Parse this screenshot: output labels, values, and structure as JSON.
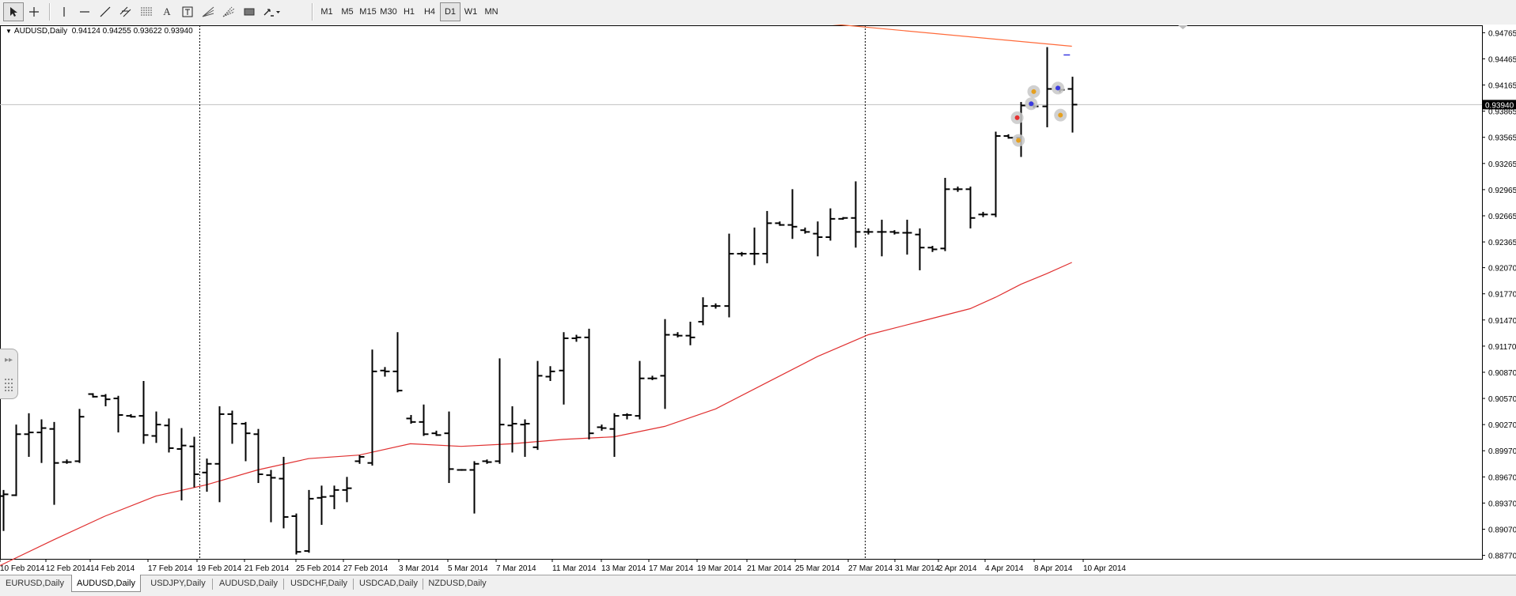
{
  "toolbar": {
    "timeframes": [
      {
        "label": "M1",
        "active": false
      },
      {
        "label": "M5",
        "active": false
      },
      {
        "label": "M15",
        "active": false
      },
      {
        "label": "M30",
        "active": false
      },
      {
        "label": "H1",
        "active": false
      },
      {
        "label": "H4",
        "active": false
      },
      {
        "label": "D1",
        "active": true
      },
      {
        "label": "W1",
        "active": false
      },
      {
        "label": "MN",
        "active": false
      }
    ],
    "tools": [
      "cursor-icon",
      "crosshair-icon",
      "vertical-line-icon",
      "horizontal-line-icon",
      "trendline-icon",
      "equidistant-channel-icon",
      "fibonacci-retracement-icon",
      "text-icon",
      "text-label-icon",
      "gann-fan-icon",
      "fibonacci-fan-icon",
      "rectangle-icon",
      "arrows-menu-icon"
    ]
  },
  "chart": {
    "header": {
      "symbol": "AUDUSD,Daily",
      "ohlc": "0.94124 0.94255 0.93622 0.93940"
    },
    "current_price_label": "0.93940",
    "colors": {
      "bars": "#000000",
      "ma_line": "#e03030",
      "trendline": "#ff6a3a",
      "price_line": "#c0c0c0",
      "grid_vline": "#000000",
      "price_label_bg": "#000000"
    }
  },
  "chart_data": {
    "type": "ohlc",
    "symbol": "AUDUSD",
    "timeframe": "Daily",
    "ylim": [
      0.8873,
      0.9485
    ],
    "y_ticks": [
      "0.94765",
      "0.94465",
      "0.94165",
      "0.93865",
      "0.93565",
      "0.93265",
      "0.92965",
      "0.92665",
      "0.92365",
      "0.92070",
      "0.91770",
      "0.91470",
      "0.91170",
      "0.90870",
      "0.90570",
      "0.90270",
      "0.89970",
      "0.89670",
      "0.89370",
      "0.89070",
      "0.88770"
    ],
    "x_ticks": [
      "10 Feb 2014",
      "12 Feb 2014",
      "14 Feb 2014",
      "17 Feb 2014",
      "19 Feb 2014",
      "21 Feb 2014",
      "25 Feb 2014",
      "27 Feb 2014",
      "3 Mar 2014",
      "5 Mar 2014",
      "7 Mar 2014",
      "11 Mar 2014",
      "13 Mar 2014",
      "17 Mar 2014",
      "19 Mar 2014",
      "21 Mar 2014",
      "25 Mar 2014",
      "27 Mar 2014",
      "31 Mar 2014",
      "2 Apr 2014",
      "4 Apr 2014",
      "8 Apr 2014",
      "10 Apr 2014"
    ],
    "bars": [
      {
        "o": 0.8945,
        "h": 0.8952,
        "l": 0.8905,
        "c": 0.8947
      },
      {
        "o": 0.8946,
        "h": 0.9027,
        "l": 0.8945,
        "c": 0.9016
      },
      {
        "o": 0.9016,
        "h": 0.904,
        "l": 0.899,
        "c": 0.9018
      },
      {
        "o": 0.9018,
        "h": 0.9033,
        "l": 0.8983,
        "c": 0.9023
      },
      {
        "o": 0.9022,
        "h": 0.903,
        "l": 0.8935,
        "c": 0.8983
      },
      {
        "o": 0.8984,
        "h": 0.8987,
        "l": 0.8982,
        "c": 0.8984
      },
      {
        "o": 0.8985,
        "h": 0.9045,
        "l": 0.8983,
        "c": 0.9036
      },
      {
        "o": 0.9062,
        "h": 0.9063,
        "l": 0.9058,
        "c": 0.9059
      },
      {
        "o": 0.906,
        "h": 0.9062,
        "l": 0.9048,
        "c": 0.9056
      },
      {
        "o": 0.9057,
        "h": 0.906,
        "l": 0.9018,
        "c": 0.9038
      },
      {
        "o": 0.9037,
        "h": 0.9039,
        "l": 0.9035,
        "c": 0.9036
      },
      {
        "o": 0.9037,
        "h": 0.9077,
        "l": 0.9005,
        "c": 0.9015
      },
      {
        "o": 0.9014,
        "h": 0.9042,
        "l": 0.9006,
        "c": 0.9027
      },
      {
        "o": 0.9026,
        "h": 0.9034,
        "l": 0.8995,
        "c": 0.9
      },
      {
        "o": 0.8999,
        "h": 0.9023,
        "l": 0.894,
        "c": 0.9003
      },
      {
        "o": 0.9002,
        "h": 0.9013,
        "l": 0.8955,
        "c": 0.897
      },
      {
        "o": 0.8972,
        "h": 0.8988,
        "l": 0.895,
        "c": 0.8982
      },
      {
        "o": 0.8982,
        "h": 0.9048,
        "l": 0.8938,
        "c": 0.9039
      },
      {
        "o": 0.9039,
        "h": 0.9043,
        "l": 0.9005,
        "c": 0.9028
      },
      {
        "o": 0.9028,
        "h": 0.903,
        "l": 0.8985,
        "c": 0.9017
      },
      {
        "o": 0.9016,
        "h": 0.9022,
        "l": 0.896,
        "c": 0.897
      },
      {
        "o": 0.8969,
        "h": 0.8975,
        "l": 0.8915,
        "c": 0.8966
      },
      {
        "o": 0.8965,
        "h": 0.899,
        "l": 0.8908,
        "c": 0.8921
      },
      {
        "o": 0.8922,
        "h": 0.8925,
        "l": 0.8878,
        "c": 0.8881
      },
      {
        "o": 0.8882,
        "h": 0.8952,
        "l": 0.888,
        "c": 0.8942
      },
      {
        "o": 0.8943,
        "h": 0.8957,
        "l": 0.8912,
        "c": 0.8944
      },
      {
        "o": 0.8945,
        "h": 0.8957,
        "l": 0.893,
        "c": 0.8952
      },
      {
        "o": 0.8952,
        "h": 0.8967,
        "l": 0.8938,
        "c": 0.8954
      },
      {
        "o": 0.8985,
        "h": 0.8992,
        "l": 0.8982,
        "c": 0.899
      },
      {
        "o": 0.8983,
        "h": 0.9113,
        "l": 0.898,
        "c": 0.9088
      },
      {
        "o": 0.9089,
        "h": 0.9093,
        "l": 0.9082,
        "c": 0.9088
      },
      {
        "o": 0.9088,
        "h": 0.9133,
        "l": 0.9064,
        "c": 0.9066
      },
      {
        "o": 0.9034,
        "h": 0.9038,
        "l": 0.9028,
        "c": 0.903
      },
      {
        "o": 0.903,
        "h": 0.905,
        "l": 0.9014,
        "c": 0.9016
      },
      {
        "o": 0.9017,
        "h": 0.902,
        "l": 0.9014,
        "c": 0.9015
      },
      {
        "o": 0.9017,
        "h": 0.9042,
        "l": 0.896,
        "c": 0.8976
      },
      {
        "o": 0.8975,
        "h": 0.8976,
        "l": 0.8974,
        "c": 0.8975
      },
      {
        "o": 0.8975,
        "h": 0.8985,
        "l": 0.8925,
        "c": 0.8982
      },
      {
        "o": 0.8985,
        "h": 0.8987,
        "l": 0.8982,
        "c": 0.8984
      },
      {
        "o": 0.8985,
        "h": 0.9103,
        "l": 0.8982,
        "c": 0.9027
      },
      {
        "o": 0.9026,
        "h": 0.9048,
        "l": 0.8995,
        "c": 0.9028
      },
      {
        "o": 0.9027,
        "h": 0.9033,
        "l": 0.899,
        "c": 0.9028
      },
      {
        "o": 0.9001,
        "h": 0.91,
        "l": 0.8998,
        "c": 0.9083
      },
      {
        "o": 0.9082,
        "h": 0.9094,
        "l": 0.9077,
        "c": 0.9088
      },
      {
        "o": 0.9089,
        "h": 0.9133,
        "l": 0.905,
        "c": 0.9126
      },
      {
        "o": 0.9126,
        "h": 0.913,
        "l": 0.9122,
        "c": 0.9127
      },
      {
        "o": 0.9127,
        "h": 0.9137,
        "l": 0.901,
        "c": 0.9017
      },
      {
        "o": 0.9024,
        "h": 0.9027,
        "l": 0.902,
        "c": 0.9023
      },
      {
        "o": 0.9022,
        "h": 0.904,
        "l": 0.899,
        "c": 0.9037
      },
      {
        "o": 0.9038,
        "h": 0.904,
        "l": 0.9033,
        "c": 0.9038
      },
      {
        "o": 0.9037,
        "h": 0.91,
        "l": 0.9033,
        "c": 0.908
      },
      {
        "o": 0.908,
        "h": 0.9083,
        "l": 0.9078,
        "c": 0.908
      },
      {
        "o": 0.9083,
        "h": 0.9148,
        "l": 0.9045,
        "c": 0.913
      },
      {
        "o": 0.913,
        "h": 0.9133,
        "l": 0.9127,
        "c": 0.9129
      },
      {
        "o": 0.9129,
        "h": 0.9145,
        "l": 0.9118,
        "c": 0.9127
      },
      {
        "o": 0.9145,
        "h": 0.9173,
        "l": 0.9141,
        "c": 0.9163
      },
      {
        "o": 0.9163,
        "h": 0.9166,
        "l": 0.916,
        "c": 0.9163
      },
      {
        "o": 0.9163,
        "h": 0.9246,
        "l": 0.915,
        "c": 0.9223
      },
      {
        "o": 0.9223,
        "h": 0.9225,
        "l": 0.922,
        "c": 0.9223
      },
      {
        "o": 0.9223,
        "h": 0.9253,
        "l": 0.921,
        "c": 0.9223
      },
      {
        "o": 0.9223,
        "h": 0.9272,
        "l": 0.9212,
        "c": 0.9258
      },
      {
        "o": 0.9258,
        "h": 0.926,
        "l": 0.9255,
        "c": 0.9256
      },
      {
        "o": 0.9256,
        "h": 0.9297,
        "l": 0.924,
        "c": 0.9254
      },
      {
        "o": 0.925,
        "h": 0.9253,
        "l": 0.9246,
        "c": 0.9248
      },
      {
        "o": 0.9246,
        "h": 0.926,
        "l": 0.922,
        "c": 0.9242
      },
      {
        "o": 0.9242,
        "h": 0.9275,
        "l": 0.9238,
        "c": 0.9263
      },
      {
        "o": 0.9263,
        "h": 0.9265,
        "l": 0.9262,
        "c": 0.9264
      },
      {
        "o": 0.9264,
        "h": 0.9306,
        "l": 0.923,
        "c": 0.9248
      },
      {
        "o": 0.9248,
        "h": 0.9252,
        "l": 0.9245,
        "c": 0.9248
      },
      {
        "o": 0.9248,
        "h": 0.9262,
        "l": 0.922,
        "c": 0.9248
      },
      {
        "o": 0.9248,
        "h": 0.925,
        "l": 0.9245,
        "c": 0.9247
      },
      {
        "o": 0.9247,
        "h": 0.9262,
        "l": 0.9222,
        "c": 0.9247
      },
      {
        "o": 0.9245,
        "h": 0.9252,
        "l": 0.9204,
        "c": 0.923
      },
      {
        "o": 0.923,
        "h": 0.9232,
        "l": 0.9225,
        "c": 0.9228
      },
      {
        "o": 0.9229,
        "h": 0.931,
        "l": 0.9226,
        "c": 0.9297
      },
      {
        "o": 0.9297,
        "h": 0.93,
        "l": 0.9294,
        "c": 0.9297
      },
      {
        "o": 0.9297,
        "h": 0.93,
        "l": 0.9252,
        "c": 0.9264
      },
      {
        "o": 0.9268,
        "h": 0.9271,
        "l": 0.9265,
        "c": 0.9268
      },
      {
        "o": 0.9268,
        "h": 0.9363,
        "l": 0.9265,
        "c": 0.9358
      },
      {
        "o": 0.9358,
        "h": 0.936,
        "l": 0.9355,
        "c": 0.9356
      },
      {
        "o": 0.9356,
        "h": 0.9397,
        "l": 0.9334,
        "c": 0.9393
      },
      {
        "o": 0.9393,
        "h": 0.9396,
        "l": 0.939,
        "c": 0.9392
      },
      {
        "o": 0.9392,
        "h": 0.946,
        "l": 0.9368,
        "c": 0.9412
      },
      {
        "o": 0.9412,
        "h": 0.9415,
        "l": 0.9408,
        "c": 0.9411
      },
      {
        "o": 0.9412,
        "h": 0.9426,
        "l": 0.9362,
        "c": 0.9394
      }
    ],
    "moving_average": [
      {
        "bar": -1,
        "v": 0.886
      },
      {
        "bar": 4,
        "v": 0.8895
      },
      {
        "bar": 8,
        "v": 0.8922
      },
      {
        "bar": 12,
        "v": 0.8945
      },
      {
        "bar": 16,
        "v": 0.8958
      },
      {
        "bar": 20,
        "v": 0.8975
      },
      {
        "bar": 24,
        "v": 0.8988
      },
      {
        "bar": 28,
        "v": 0.8992
      },
      {
        "bar": 32,
        "v": 0.9005
      },
      {
        "bar": 36,
        "v": 0.9002
      },
      {
        "bar": 40,
        "v": 0.9005
      },
      {
        "bar": 44,
        "v": 0.901
      },
      {
        "bar": 48,
        "v": 0.9013
      },
      {
        "bar": 52,
        "v": 0.9025
      },
      {
        "bar": 56,
        "v": 0.9045
      },
      {
        "bar": 60,
        "v": 0.9075
      },
      {
        "bar": 64,
        "v": 0.9105
      },
      {
        "bar": 68,
        "v": 0.913
      },
      {
        "bar": 72,
        "v": 0.9145
      },
      {
        "bar": 76,
        "v": 0.916
      },
      {
        "bar": 78,
        "v": 0.9173
      },
      {
        "bar": 80,
        "v": 0.9188
      },
      {
        "bar": 82,
        "v": 0.92
      },
      {
        "bar": 84,
        "v": 0.9213
      }
    ],
    "trendline": [
      {
        "bar": 64,
        "v": 0.9488
      },
      {
        "bar": 84,
        "v": 0.9461
      }
    ],
    "dotted_vlines_at_bar": [
      15.4,
      67.7
    ],
    "current_price": 0.9394,
    "trade_markers": [
      {
        "bar": 79.7,
        "v": 0.9379,
        "color": "#e53030"
      },
      {
        "bar": 79.8,
        "v": 0.9353,
        "color": "#e5a020"
      },
      {
        "bar": 80.8,
        "v": 0.9395,
        "color": "#3a3ae0"
      },
      {
        "bar": 81.0,
        "v": 0.9409,
        "color": "#e5a020"
      },
      {
        "bar": 82.9,
        "v": 0.9413,
        "color": "#3a3ae0"
      },
      {
        "bar": 83.1,
        "v": 0.9382,
        "color": "#e5a020"
      }
    ]
  },
  "tabs": [
    {
      "label": "EURUSD,Daily",
      "active": false
    },
    {
      "label": "AUDUSD,Daily",
      "active": true
    },
    {
      "label": "USDJPY,Daily",
      "active": false
    },
    {
      "label": "AUDUSD,Daily",
      "active": false
    },
    {
      "label": "USDCHF,Daily",
      "active": false
    },
    {
      "label": "USDCAD,Daily",
      "active": false
    },
    {
      "label": "NZDUSD,Daily",
      "active": false
    }
  ]
}
